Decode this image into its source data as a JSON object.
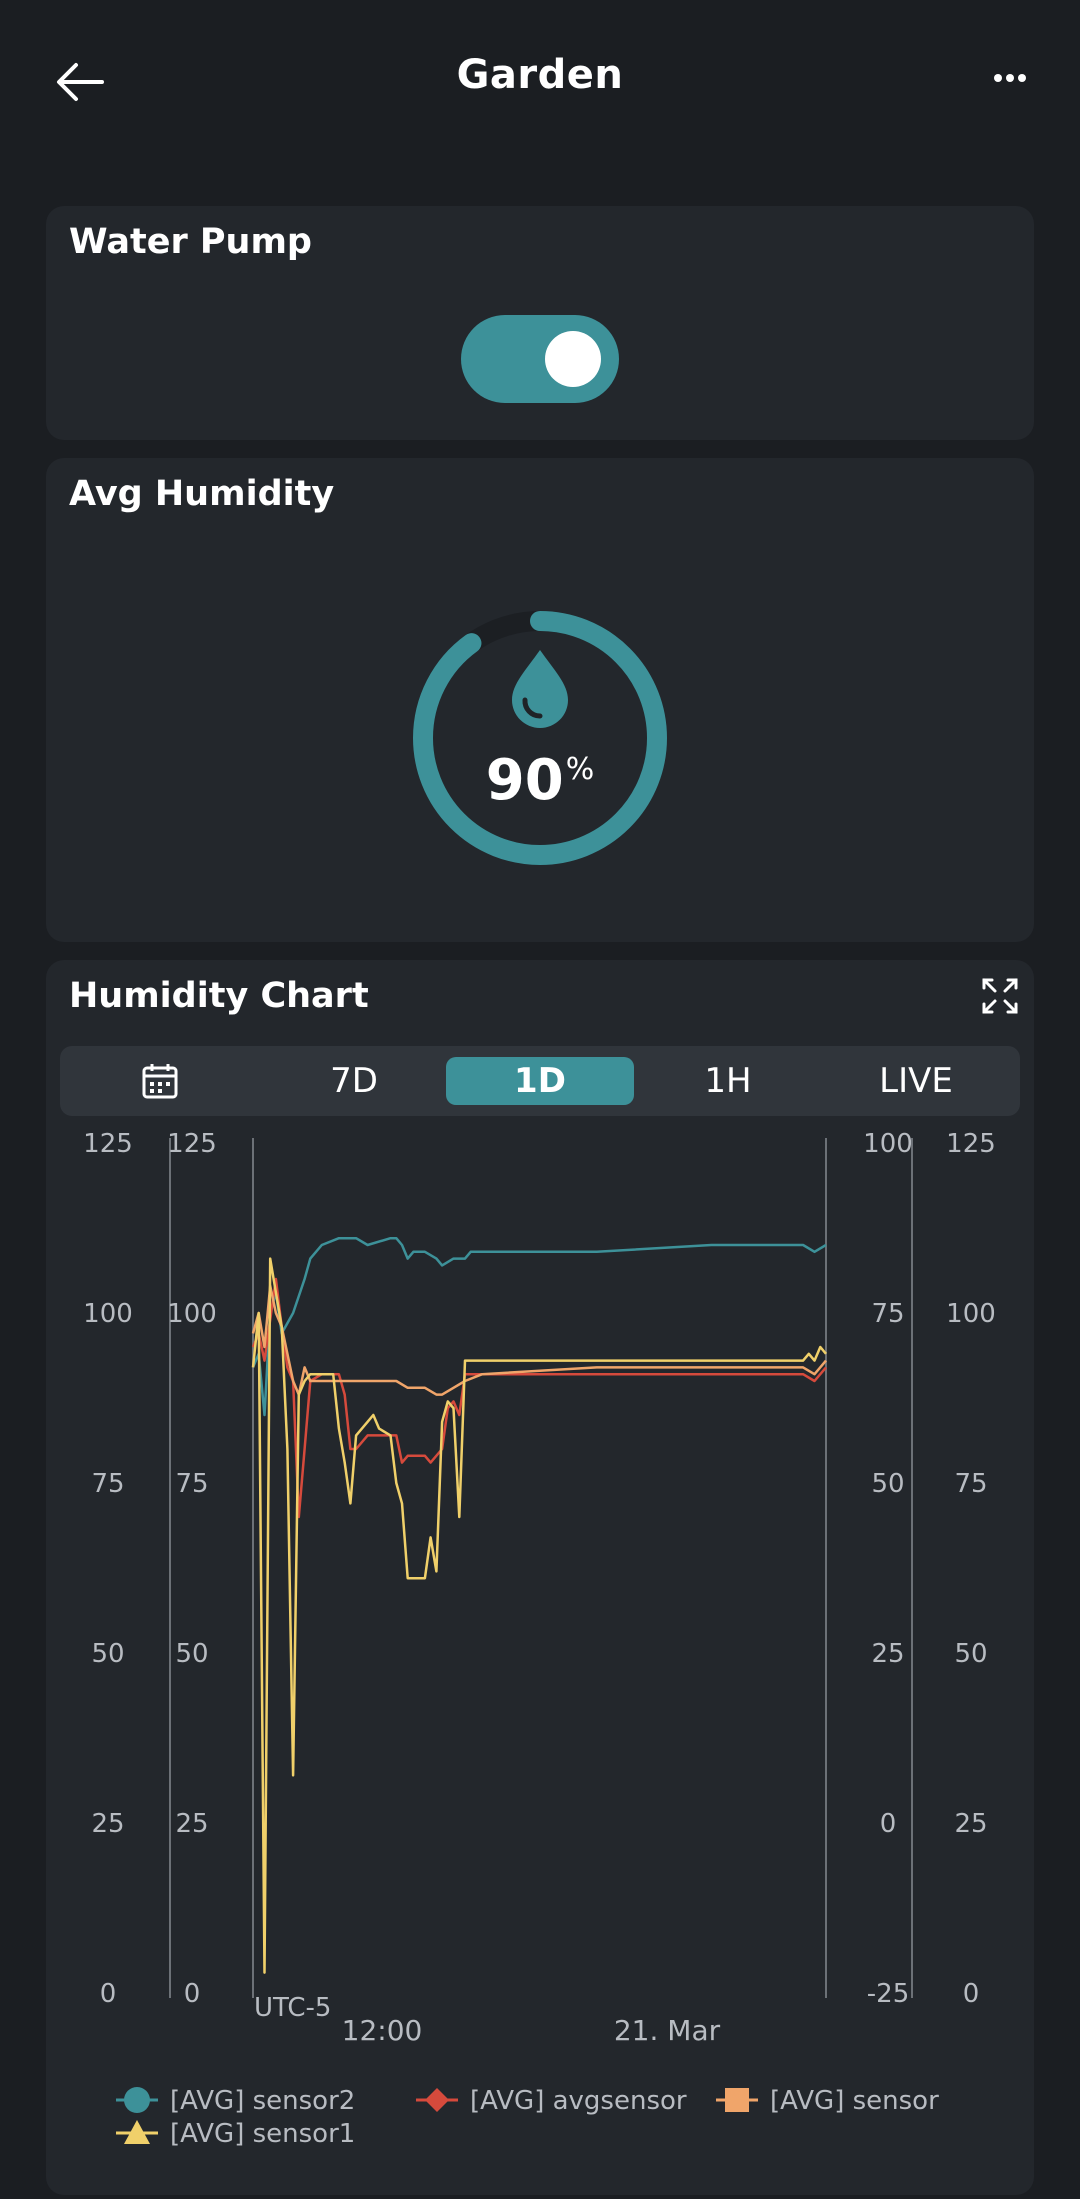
{
  "header": {
    "title": "Garden"
  },
  "water_pump": {
    "title": "Water Pump",
    "state": "on",
    "accent": "#3d9199"
  },
  "avg_humidity": {
    "title": "Avg Humidity",
    "value": "90",
    "unit": "%",
    "fraction": 0.9
  },
  "humidity_chart": {
    "title": "Humidity Chart",
    "ranges": [
      "7D",
      "1D",
      "1H",
      "LIVE"
    ],
    "active_range": "1D",
    "timezone_label": "UTC-5"
  },
  "chart_data": {
    "type": "line",
    "x_ticks": [
      "12:00",
      "21. Mar"
    ],
    "axes": [
      {
        "id": "a1",
        "side": "left",
        "ticks": [
          "0",
          "25",
          "50",
          "75",
          "100",
          "125"
        ],
        "ylim": [
          0,
          125
        ]
      },
      {
        "id": "a2",
        "side": "left",
        "ticks": [
          "0",
          "25",
          "50",
          "75",
          "100",
          "125"
        ],
        "ylim": [
          0,
          125
        ]
      },
      {
        "id": "a3",
        "side": "right",
        "ticks": [
          "-25",
          "0",
          "25",
          "50",
          "75",
          "100"
        ],
        "ylim": [
          -25,
          100
        ]
      },
      {
        "id": "a4",
        "side": "right",
        "ticks": [
          "0",
          "25",
          "50",
          "75",
          "100",
          "125"
        ],
        "ylim": [
          0,
          125
        ]
      }
    ],
    "x_range": [
      0,
      100
    ],
    "series": [
      {
        "name": "[AVG] sensor2",
        "color": "#3d9199",
        "marker": "circle",
        "axis": "a3",
        "points": [
          [
            0,
            67
          ],
          [
            1,
            69
          ],
          [
            2,
            60
          ],
          [
            3,
            75
          ],
          [
            4,
            78
          ],
          [
            5,
            72
          ],
          [
            7,
            75
          ],
          [
            9,
            80
          ],
          [
            10,
            83
          ],
          [
            12,
            85
          ],
          [
            15,
            86
          ],
          [
            18,
            86
          ],
          [
            20,
            85
          ],
          [
            24,
            86
          ],
          [
            25,
            86
          ],
          [
            26,
            85
          ],
          [
            27,
            83
          ],
          [
            28,
            84
          ],
          [
            30,
            84
          ],
          [
            32,
            83
          ],
          [
            33,
            82
          ],
          [
            35,
            83
          ],
          [
            37,
            83
          ],
          [
            38,
            84
          ],
          [
            45,
            84
          ],
          [
            60,
            84
          ],
          [
            80,
            85
          ],
          [
            96,
            85
          ],
          [
            98,
            84
          ],
          [
            100,
            85
          ]
        ]
      },
      {
        "name": "[AVG] avgsensor",
        "color": "#d64a3c",
        "marker": "diamond",
        "axis": "a4",
        "points": [
          [
            0,
            95
          ],
          [
            1,
            97
          ],
          [
            2,
            93
          ],
          [
            3,
            99
          ],
          [
            4,
            105
          ],
          [
            5,
            98
          ],
          [
            6,
            92
          ],
          [
            7,
            90
          ],
          [
            8,
            70
          ],
          [
            9,
            80
          ],
          [
            10,
            90
          ],
          [
            12,
            91
          ],
          [
            15,
            91
          ],
          [
            16,
            88
          ],
          [
            17,
            80
          ],
          [
            18,
            80
          ],
          [
            20,
            82
          ],
          [
            23,
            82
          ],
          [
            25,
            82
          ],
          [
            26,
            78
          ],
          [
            27,
            79
          ],
          [
            28,
            79
          ],
          [
            30,
            79
          ],
          [
            31,
            78
          ],
          [
            33,
            80
          ],
          [
            34,
            86
          ],
          [
            35,
            87
          ],
          [
            36,
            85
          ],
          [
            37,
            91
          ],
          [
            40,
            91
          ],
          [
            60,
            91
          ],
          [
            80,
            91
          ],
          [
            96,
            91
          ],
          [
            98,
            90
          ],
          [
            100,
            92
          ]
        ]
      },
      {
        "name": "[AVG] sensor",
        "color": "#f0a56a",
        "marker": "square",
        "axis": "a4",
        "points": [
          [
            0,
            97
          ],
          [
            1,
            100
          ],
          [
            2,
            95
          ],
          [
            3,
            104
          ],
          [
            4,
            100
          ],
          [
            5,
            98
          ],
          [
            6,
            94
          ],
          [
            7,
            90
          ],
          [
            8,
            88
          ],
          [
            9,
            92
          ],
          [
            10,
            90
          ],
          [
            13,
            90
          ],
          [
            16,
            90
          ],
          [
            20,
            90
          ],
          [
            25,
            90
          ],
          [
            27,
            89
          ],
          [
            28,
            89
          ],
          [
            30,
            89
          ],
          [
            32,
            88
          ],
          [
            33,
            88
          ],
          [
            35,
            89
          ],
          [
            37,
            90
          ],
          [
            40,
            91
          ],
          [
            60,
            92
          ],
          [
            80,
            92
          ],
          [
            96,
            92
          ],
          [
            98,
            91
          ],
          [
            100,
            93
          ]
        ]
      },
      {
        "name": "[AVG] sensor1",
        "color": "#f0d06a",
        "marker": "triangle",
        "axis": "a4",
        "points": [
          [
            0,
            92
          ],
          [
            1,
            100
          ],
          [
            2,
            3
          ],
          [
            3,
            108
          ],
          [
            4,
            103
          ],
          [
            5,
            98
          ],
          [
            6,
            80
          ],
          [
            7,
            32
          ],
          [
            8,
            88
          ],
          [
            9,
            90
          ],
          [
            10,
            91
          ],
          [
            12,
            91
          ],
          [
            14,
            91
          ],
          [
            15,
            83
          ],
          [
            16,
            78
          ],
          [
            17,
            72
          ],
          [
            18,
            82
          ],
          [
            19,
            83
          ],
          [
            20,
            84
          ],
          [
            21,
            85
          ],
          [
            22,
            83
          ],
          [
            24,
            82
          ],
          [
            25,
            75
          ],
          [
            26,
            72
          ],
          [
            27,
            61
          ],
          [
            28,
            61
          ],
          [
            30,
            61
          ],
          [
            31,
            67
          ],
          [
            32,
            62
          ],
          [
            33,
            84
          ],
          [
            34,
            87
          ],
          [
            35,
            86
          ],
          [
            36,
            70
          ],
          [
            37,
            93
          ],
          [
            40,
            93
          ],
          [
            60,
            93
          ],
          [
            80,
            93
          ],
          [
            96,
            93
          ],
          [
            97,
            94
          ],
          [
            98,
            93
          ],
          [
            99,
            95
          ],
          [
            100,
            94
          ]
        ]
      }
    ],
    "grid": false,
    "legend_position": "bottom"
  }
}
